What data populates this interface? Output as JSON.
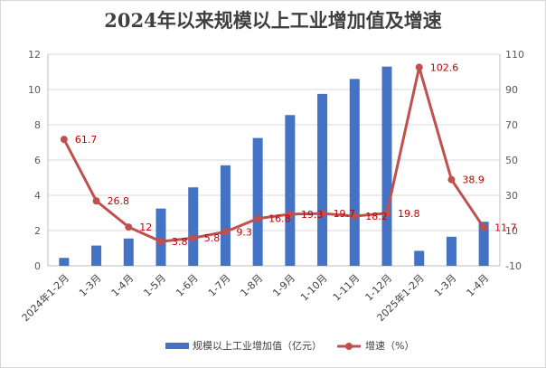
{
  "chart_data": {
    "type": "bar+line",
    "title": "2024年以来规模以上工业增加值及增速",
    "categories": [
      "2024年1-2月",
      "1-3月",
      "1-4月",
      "1-5月",
      "1-6月",
      "1-7月",
      "1-8月",
      "1-9月",
      "1-10月",
      "1-11月",
      "1-12月",
      "2025年1-2月",
      "1-3月",
      "1-4月"
    ],
    "series": [
      {
        "name": "规模以上工业增加值（亿元）",
        "type": "bar",
        "axis": "left",
        "color": "#4472c4",
        "values": [
          0.45,
          1.15,
          1.55,
          3.25,
          4.45,
          5.7,
          7.25,
          8.55,
          9.75,
          10.6,
          11.3,
          0.85,
          1.65,
          2.5
        ]
      },
      {
        "name": "增速（%）",
        "type": "line",
        "axis": "right",
        "color": "#c0504d",
        "values": [
          61.7,
          26.8,
          12,
          3.8,
          5.8,
          9.3,
          16.8,
          19.3,
          19.7,
          18.2,
          19.8,
          102.6,
          38.9,
          11.7
        ],
        "labels": [
          "61.7",
          "26.8",
          "12",
          "3.8",
          "5.8",
          "9.3",
          "16.8",
          "19.3",
          "19.7",
          "18.2",
          "19.8",
          "102.6",
          "38.9",
          "11.7"
        ]
      }
    ],
    "y_left": {
      "min": 0,
      "max": 12,
      "step": 2,
      "ticks": [
        "0",
        "2",
        "4",
        "6",
        "8",
        "10",
        "12"
      ]
    },
    "y_right": {
      "min": -10,
      "max": 110,
      "step": 20,
      "ticks": [
        "-10",
        "10",
        "30",
        "50",
        "70",
        "90",
        "110"
      ]
    },
    "grid": true,
    "legend_position": "bottom"
  }
}
